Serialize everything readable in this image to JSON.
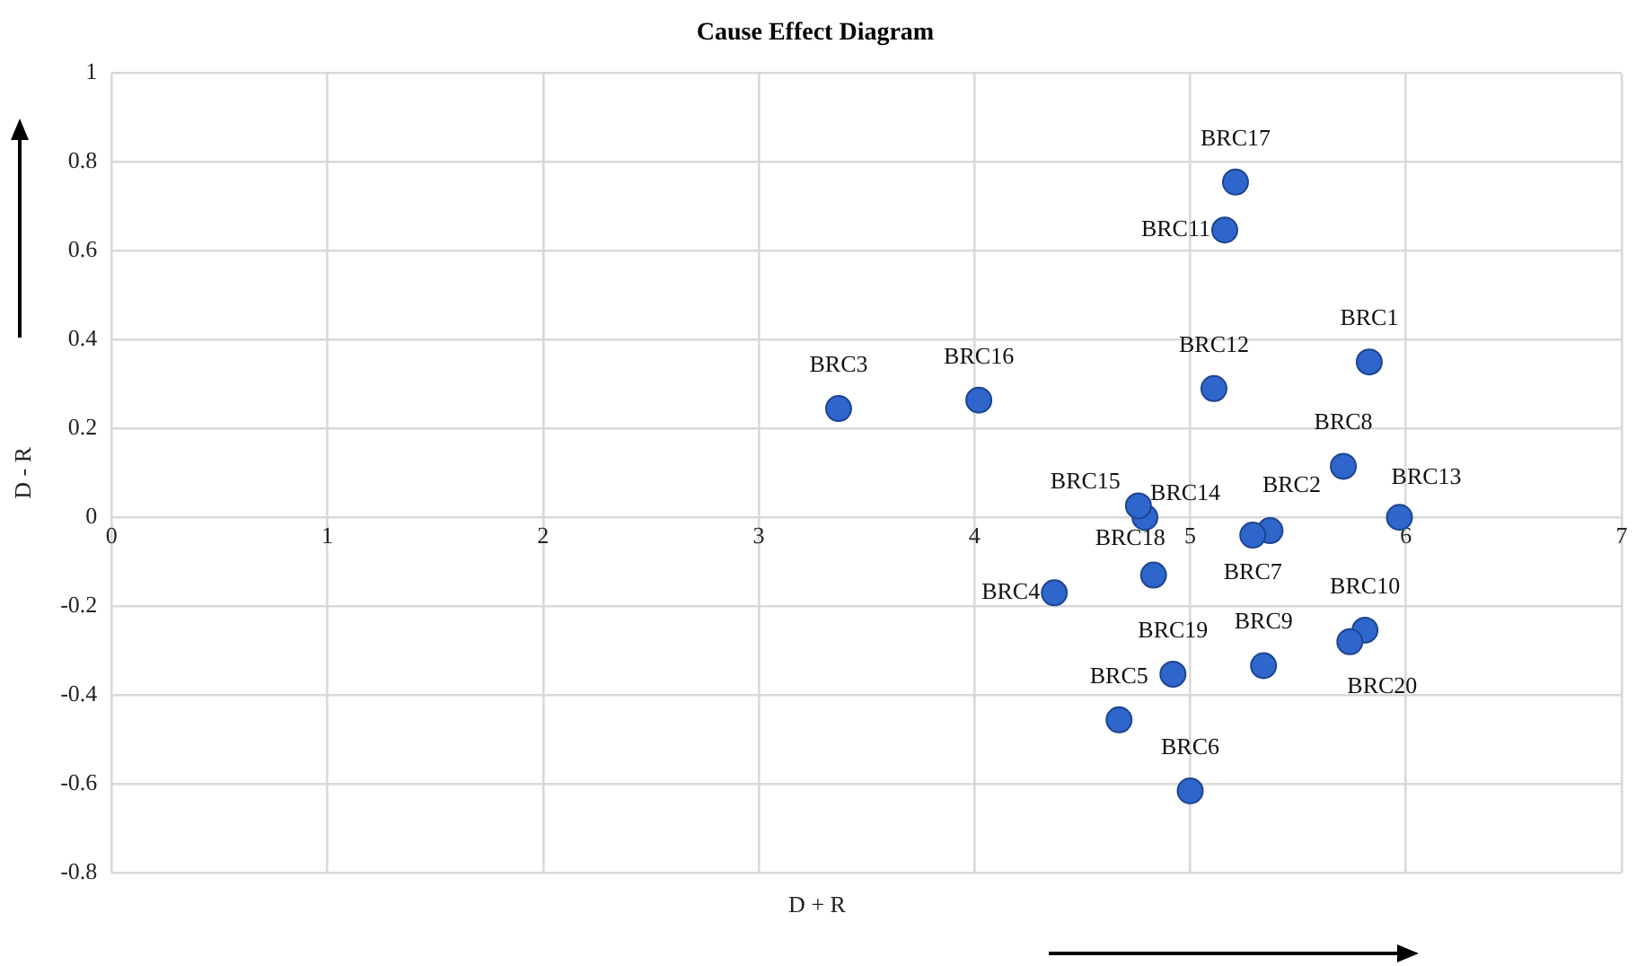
{
  "chart_data": {
    "type": "scatter",
    "title": "Cause Effect Diagram",
    "xlabel": "D + R",
    "ylabel": "D - R",
    "x": [
      5.83,
      5.37,
      3.37,
      4.37,
      4.67,
      5.0,
      5.29,
      5.71,
      5.34,
      5.81,
      5.16,
      5.11,
      5.97,
      4.79,
      4.76,
      4.02,
      5.21,
      4.83,
      4.92,
      5.74
    ],
    "series": [
      {
        "color": "#2f66cc",
        "values": [
          0.35,
          -0.03,
          0.245,
          -0.17,
          -0.456,
          -0.616,
          -0.04,
          0.115,
          -0.334,
          -0.254,
          0.647,
          0.29,
          0.0,
          0.0,
          0.026,
          0.264,
          0.755,
          -0.13,
          -0.353,
          -0.28
        ],
        "value_labels": [
          "BRC1",
          "BRC2",
          "BRC3",
          "BRC4",
          "BRC5",
          "BRC6",
          "BRC7",
          "BRC8",
          "BRC9",
          "BRC10",
          "BRC11",
          "BRC12",
          "BRC13",
          "BRC14",
          "BRC15",
          "BRC16",
          "BRC17",
          "BRC18",
          "BRC19",
          "BRC20"
        ]
      }
    ],
    "xlim": [
      0,
      7
    ],
    "xticks": [
      0,
      1,
      2,
      3,
      4,
      5,
      6,
      7
    ],
    "ylim": [
      -0.8,
      1
    ],
    "yticks": [
      -0.8,
      -0.6,
      -0.4,
      -0.2,
      0,
      0.2,
      0.4,
      0.6,
      0.8,
      1
    ],
    "grid": true,
    "legend": false,
    "marker": "circle"
  }
}
